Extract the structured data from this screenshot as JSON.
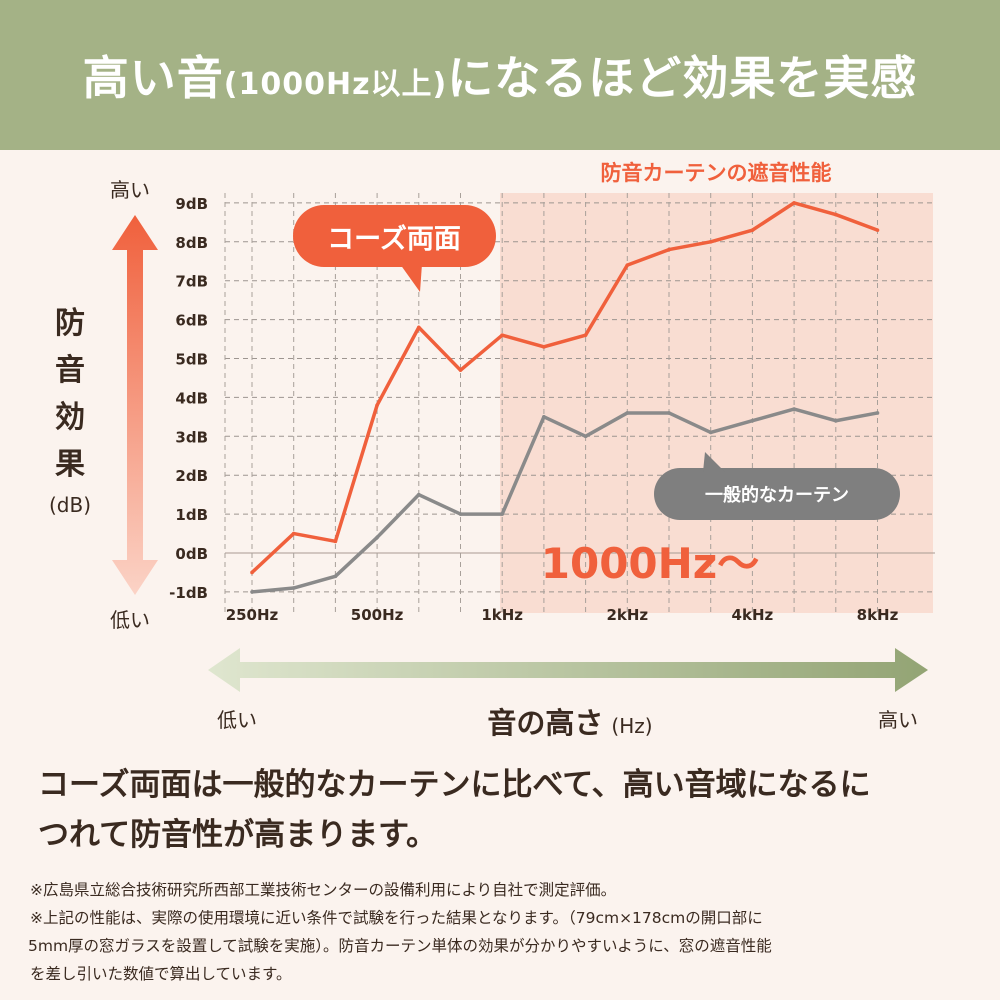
{
  "header": {
    "title_a": "高い音",
    "title_b": "(1000Hz以上)",
    "title_c": "になるほど効果を実感"
  },
  "colors": {
    "header": "#a4b286",
    "background": "#fbf3ee",
    "kose": "#f0603c",
    "general": "#8a8a8a",
    "highlight": "#f9ddd2",
    "text": "#3a2a20"
  },
  "y_axis": {
    "title": "防音効果",
    "unit": "(dB)",
    "top": "高い",
    "bottom": "低い"
  },
  "x_axis": {
    "title": "音の高さ",
    "unit": "(Hz)",
    "left": "低い",
    "right": "高い"
  },
  "chart_data": {
    "type": "line",
    "x": [
      "250Hz",
      "315Hz",
      "400Hz",
      "500Hz",
      "630Hz",
      "800Hz",
      "1kHz",
      "1.25kHz",
      "1.6kHz",
      "2kHz",
      "2.5kHz",
      "3.15kHz",
      "4kHz",
      "5kHz",
      "6.3kHz",
      "8kHz"
    ],
    "x_tick_labels": [
      "250Hz",
      "500Hz",
      "1kHz",
      "2kHz",
      "4kHz",
      "8kHz"
    ],
    "y_tick_labels": [
      "-1dB",
      "0dB",
      "1dB",
      "2dB",
      "3dB",
      "4dB",
      "5dB",
      "6dB",
      "7dB",
      "8dB",
      "9dB"
    ],
    "ylim": [
      -1,
      9
    ],
    "grid": true,
    "series": [
      {
        "name": "コーズ両面",
        "color": "#f0603c",
        "values": [
          -0.5,
          0.5,
          0.3,
          3.8,
          5.8,
          4.7,
          5.6,
          5.3,
          5.6,
          7.4,
          7.8,
          8.0,
          8.3,
          9.0,
          8.7,
          8.3
        ]
      },
      {
        "name": "一般的なカーテン",
        "color": "#8a8a8a",
        "values": [
          -1.0,
          -0.9,
          -0.6,
          0.4,
          1.5,
          1.0,
          1.0,
          3.5,
          3.0,
          3.6,
          3.6,
          3.1,
          3.4,
          3.7,
          3.4,
          3.6
        ]
      }
    ],
    "highlight": {
      "label": "防音カーテンの遮音性能",
      "range_label": "1000Hz〜",
      "from": "1kHz"
    }
  },
  "body_text": {
    "line1": "コーズ両面は一般的なカーテンに比べて、高い音域になるに",
    "line2": "つれて防音性が高まります。"
  },
  "notes": [
    "※広島県立総合技術研究所西部工業技術センターの設備利用により自社で測定評価。",
    "※上記の性能は、実際の使用環境に近い条件で試験を行った結果となります。（79cm×178cmの開口部に",
    "5mm厚の窓ガラスを設置して試験を実施）。防音カーテン単体の効果が分かりやすいように、窓の遮音性能",
    "を差し引いた数値で算出しています。"
  ]
}
